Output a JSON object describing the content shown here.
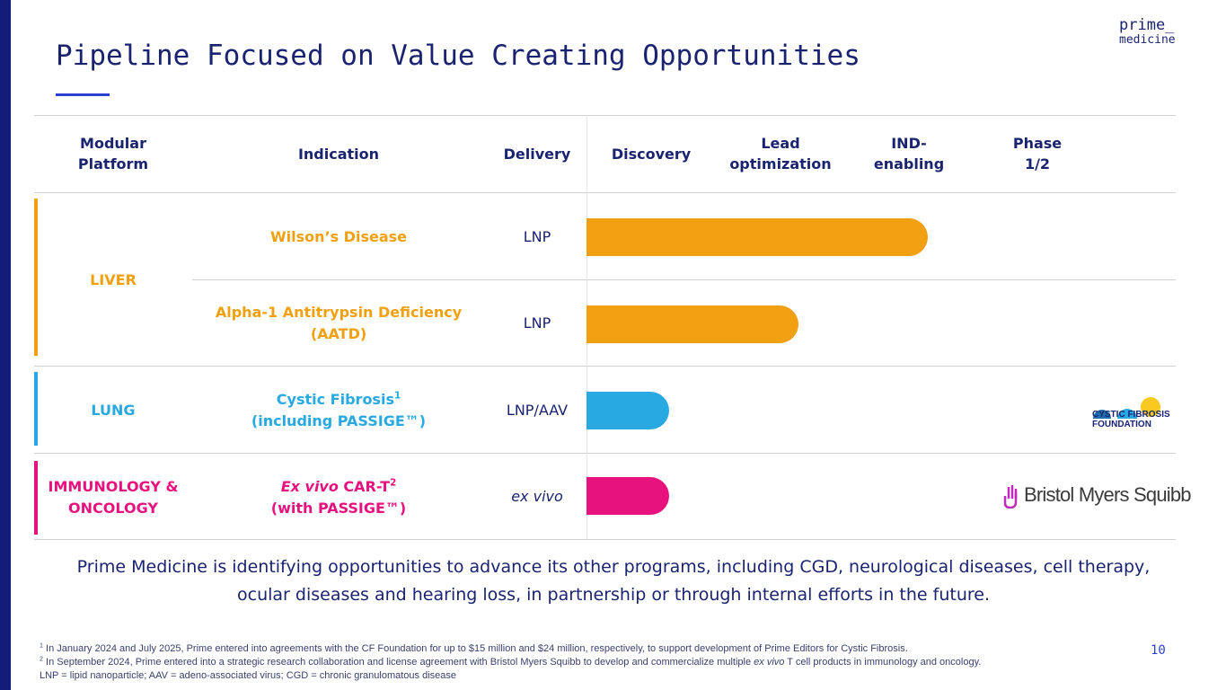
{
  "title": "Pipeline Focused on Value Creating Opportunities",
  "logo": {
    "line1": "prime_",
    "line2": "medicine"
  },
  "headers": {
    "platform": "Modular Platform",
    "indication": "Indication",
    "delivery": "Delivery",
    "discovery": "Discovery",
    "lead": "Lead optimization",
    "ind": "IND-enabling",
    "phase": "Phase 1/2"
  },
  "colors": {
    "liver": "#f0a010",
    "lung": "#29a9e1",
    "immuno": "#e8127f",
    "navy": "#1a2370"
  },
  "rows": [
    {
      "platform": "LIVER",
      "indication": "Wilson’s Disease",
      "delivery": "LNP",
      "stage_progress": 0.58
    },
    {
      "platform": "LIVER",
      "indication_line1": "Alpha-1 Antitrypsin Deficiency",
      "indication_line2": "(AATD)",
      "delivery": "LNP",
      "stage_progress": 0.36
    },
    {
      "platform": "LUNG",
      "indication_line1": "Cystic Fibrosis",
      "indication_sup": "1",
      "indication_line2": "(including PASSIGE™)",
      "delivery": "LNP/AAV",
      "stage_progress": 0.14
    },
    {
      "platform_line1": "IMMUNOLOGY &",
      "platform_line2": "ONCOLOGY",
      "indication_em": "Ex vivo",
      "indication_rest": " CAR-T",
      "indication_sup": "2",
      "indication_line2": "(with PASSIGE™)",
      "delivery": "ex vivo",
      "stage_progress": 0.14
    }
  ],
  "partners": {
    "cf_line1": "CYSTIC FIBROSIS",
    "cf_line2": "FOUNDATION",
    "bms": "Bristol Myers Squibb"
  },
  "summary_line1": "Prime Medicine is identifying opportunities to advance its other programs, including CGD, neurological diseases, cell therapy,",
  "summary_line2": "ocular diseases and hearing loss, in partnership or through internal efforts in the future.",
  "footnotes": {
    "n1_sup": "1",
    "n1": " In January 2024 and July 2025, Prime entered into agreements with the CF Foundation for up to $15 million and $24 million, respectively, to support development of Prime Editors for Cystic Fibrosis.",
    "n2_sup": "2",
    "n2_a": " In September 2024, Prime entered into a strategic research collaboration and license agreement with Bristol Myers Squibb to develop and commercialize multiple ",
    "n2_em": "ex vivo",
    "n2_b": " T cell products in immunology and oncology.",
    "n3": "LNP = lipid nanoparticle; AAV = adeno-associated virus; CGD = chronic granulomatous disease"
  },
  "page_number": "10"
}
